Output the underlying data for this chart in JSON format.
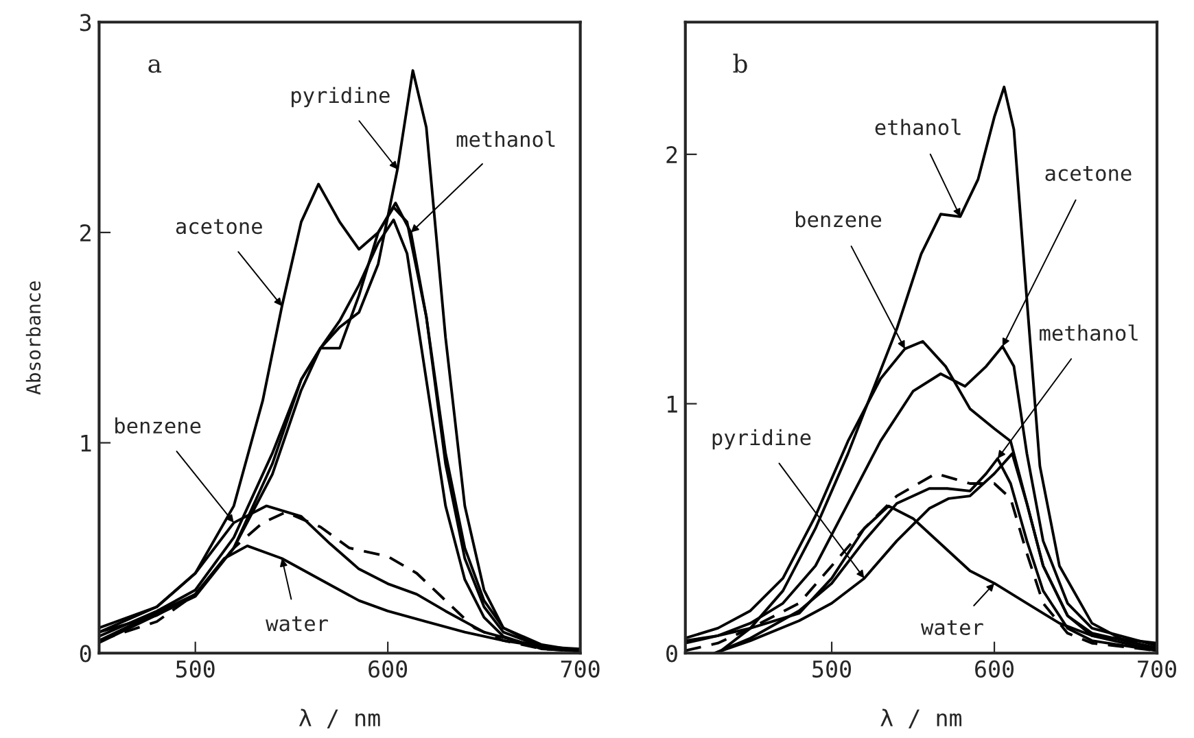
{
  "chart_data": [
    {
      "type": "line",
      "ylabel": "Absorbance",
      "xlabel": "λ / nm",
      "xlim": [
        450,
        700
      ],
      "ylim": [
        0,
        3
      ],
      "xticks": [
        500,
        600,
        700
      ],
      "yticks": [
        0,
        1,
        2,
        3
      ],
      "grid": false,
      "marker": "none",
      "annotations": [
        "a",
        {
          "text": "acetone",
          "x": 545,
          "y": 1.65
        },
        {
          "text": "pyridine",
          "x": 605,
          "y": 2.3
        },
        {
          "text": "methanol",
          "x": 612,
          "y": 2.0
        },
        {
          "text": "benzene",
          "x": 520,
          "y": 0.62
        },
        {
          "text": "water",
          "x": 545,
          "y": 0.45
        }
      ],
      "series": [
        {
          "color": "#000000",
          "line_style": "solid",
          "x": [
            450,
            480,
            500,
            520,
            540,
            555,
            565,
            575,
            585,
            595,
            605,
            613,
            620,
            630,
            640,
            650,
            660,
            680,
            700
          ],
          "values": [
            0.08,
            0.2,
            0.3,
            0.55,
            0.95,
            1.3,
            1.45,
            1.55,
            1.62,
            1.85,
            2.3,
            2.77,
            2.5,
            1.5,
            0.7,
            0.3,
            0.12,
            0.03,
            0.01
          ]
        },
        {
          "color": "#000000",
          "line_style": "solid",
          "x": [
            450,
            500,
            520,
            540,
            555,
            565,
            575,
            585,
            595,
            604,
            612,
            620,
            630,
            640,
            650,
            660,
            680,
            700
          ],
          "values": [
            0.06,
            0.28,
            0.5,
            0.9,
            1.3,
            1.45,
            1.45,
            1.7,
            2.0,
            2.14,
            2.0,
            1.6,
            0.9,
            0.45,
            0.22,
            0.1,
            0.03,
            0.01
          ]
        },
        {
          "color": "#000000",
          "line_style": "solid",
          "x": [
            450,
            500,
            520,
            540,
            555,
            565,
            575,
            585,
            595,
            603,
            610,
            620,
            630,
            640,
            650,
            660,
            680,
            700
          ],
          "values": [
            0.05,
            0.27,
            0.5,
            0.85,
            1.25,
            1.45,
            1.58,
            1.75,
            1.95,
            2.06,
            1.9,
            1.3,
            0.7,
            0.35,
            0.17,
            0.08,
            0.02,
            0.01
          ]
        },
        {
          "color": "#000000",
          "line_style": "solid",
          "x": [
            450,
            480,
            500,
            520,
            535,
            545,
            555,
            564,
            575,
            585,
            595,
            603,
            610,
            620,
            630,
            640,
            650,
            660,
            680,
            700
          ],
          "values": [
            0.1,
            0.22,
            0.38,
            0.7,
            1.2,
            1.65,
            2.05,
            2.23,
            2.05,
            1.92,
            2.0,
            2.12,
            2.05,
            1.6,
            0.95,
            0.5,
            0.25,
            0.12,
            0.04,
            0.01
          ]
        },
        {
          "color": "#000000",
          "line_style": "solid",
          "x": [
            450,
            480,
            500,
            520,
            537,
            555,
            570,
            585,
            600,
            615,
            630,
            650,
            670,
            700
          ],
          "values": [
            0.12,
            0.22,
            0.38,
            0.62,
            0.7,
            0.65,
            0.52,
            0.4,
            0.33,
            0.28,
            0.2,
            0.1,
            0.05,
            0.01
          ]
        },
        {
          "color": "#000000",
          "line_style": "dashed",
          "x": [
            450,
            480,
            500,
            520,
            535,
            547,
            565,
            580,
            600,
            615,
            630,
            645,
            660,
            680,
            700
          ],
          "values": [
            0.06,
            0.15,
            0.28,
            0.5,
            0.62,
            0.67,
            0.6,
            0.5,
            0.46,
            0.38,
            0.25,
            0.12,
            0.06,
            0.02,
            0.01
          ]
        },
        {
          "color": "#000000",
          "line_style": "solid",
          "x": [
            450,
            480,
            500,
            515,
            527,
            545,
            565,
            585,
            600,
            620,
            640,
            660,
            680,
            700
          ],
          "values": [
            0.1,
            0.18,
            0.28,
            0.45,
            0.51,
            0.45,
            0.35,
            0.25,
            0.2,
            0.15,
            0.1,
            0.06,
            0.03,
            0.02
          ]
        }
      ]
    },
    {
      "type": "line",
      "xlabel": "λ / nm",
      "xlim": [
        410,
        700
      ],
      "ylim": [
        0,
        2.53
      ],
      "xticks": [
        500,
        600,
        700
      ],
      "yticks": [
        0,
        1,
        2
      ],
      "grid": false,
      "marker": "none",
      "annotations": [
        "b",
        {
          "text": "ethanol",
          "x": 579,
          "y": 1.75
        },
        {
          "text": "acetone",
          "x": 605,
          "y": 1.23
        },
        {
          "text": "benzene",
          "x": 545,
          "y": 1.22
        },
        {
          "text": "methanol",
          "x": 602,
          "y": 0.78
        },
        {
          "text": "pyridine",
          "x": 520,
          "y": 0.3
        },
        {
          "text": "water",
          "x": 600,
          "y": 0.28
        }
      ],
      "series": [
        {
          "color": "#000000",
          "line_style": "solid",
          "x": [
            430,
            450,
            470,
            490,
            510,
            525,
            540,
            555,
            567,
            579,
            590,
            600,
            606,
            612,
            619,
            628,
            640,
            660,
            680,
            700
          ],
          "values": [
            0.0,
            0.1,
            0.25,
            0.5,
            0.8,
            1.05,
            1.3,
            1.6,
            1.76,
            1.75,
            1.9,
            2.15,
            2.27,
            2.1,
            1.5,
            0.75,
            0.35,
            0.12,
            0.05,
            0.02
          ]
        },
        {
          "color": "#000000",
          "line_style": "solid",
          "x": [
            410,
            430,
            450,
            470,
            490,
            510,
            530,
            545,
            556,
            570,
            585,
            600,
            610,
            620,
            630,
            645,
            660,
            700
          ],
          "values": [
            0.06,
            0.1,
            0.17,
            0.3,
            0.55,
            0.85,
            1.1,
            1.22,
            1.25,
            1.15,
            0.98,
            0.9,
            0.85,
            0.6,
            0.35,
            0.15,
            0.08,
            0.02
          ]
        },
        {
          "color": "#000000",
          "line_style": "solid",
          "x": [
            410,
            430,
            450,
            470,
            490,
            510,
            530,
            550,
            567,
            582,
            595,
            605,
            612,
            620,
            630,
            645,
            660,
            700
          ],
          "values": [
            0.04,
            0.07,
            0.12,
            0.2,
            0.35,
            0.6,
            0.85,
            1.05,
            1.12,
            1.07,
            1.15,
            1.23,
            1.15,
            0.8,
            0.45,
            0.2,
            0.1,
            0.03
          ]
        },
        {
          "color": "#000000",
          "line_style": "solid",
          "x": [
            428,
            450,
            480,
            500,
            520,
            540,
            560,
            571,
            585,
            595,
            602,
            610,
            620,
            630,
            645,
            660,
            700
          ],
          "values": [
            0.0,
            0.06,
            0.17,
            0.28,
            0.45,
            0.6,
            0.66,
            0.66,
            0.65,
            0.72,
            0.78,
            0.68,
            0.45,
            0.25,
            0.1,
            0.05,
            0.01
          ]
        },
        {
          "color": "#000000",
          "line_style": "solid",
          "x": [
            428,
            450,
            480,
            500,
            520,
            540,
            560,
            572,
            585,
            600,
            611,
            620,
            630,
            645,
            660,
            700
          ],
          "values": [
            0.0,
            0.05,
            0.13,
            0.2,
            0.3,
            0.45,
            0.58,
            0.62,
            0.63,
            0.72,
            0.8,
            0.6,
            0.35,
            0.15,
            0.07,
            0.01
          ]
        },
        {
          "color": "#000000",
          "line_style": "dashed",
          "x": [
            410,
            430,
            450,
            480,
            500,
            520,
            540,
            564,
            585,
            600,
            610,
            620,
            630,
            645,
            660,
            700
          ],
          "values": [
            0.01,
            0.04,
            0.1,
            0.2,
            0.35,
            0.5,
            0.63,
            0.72,
            0.68,
            0.68,
            0.62,
            0.4,
            0.2,
            0.08,
            0.04,
            0.01
          ]
        },
        {
          "color": "#000000",
          "line_style": "solid",
          "x": [
            410,
            430,
            450,
            480,
            500,
            520,
            535,
            550,
            570,
            585,
            600,
            620,
            640,
            660,
            700
          ],
          "values": [
            0.05,
            0.07,
            0.1,
            0.16,
            0.3,
            0.5,
            0.59,
            0.54,
            0.42,
            0.33,
            0.28,
            0.2,
            0.12,
            0.07,
            0.04
          ]
        }
      ]
    }
  ]
}
